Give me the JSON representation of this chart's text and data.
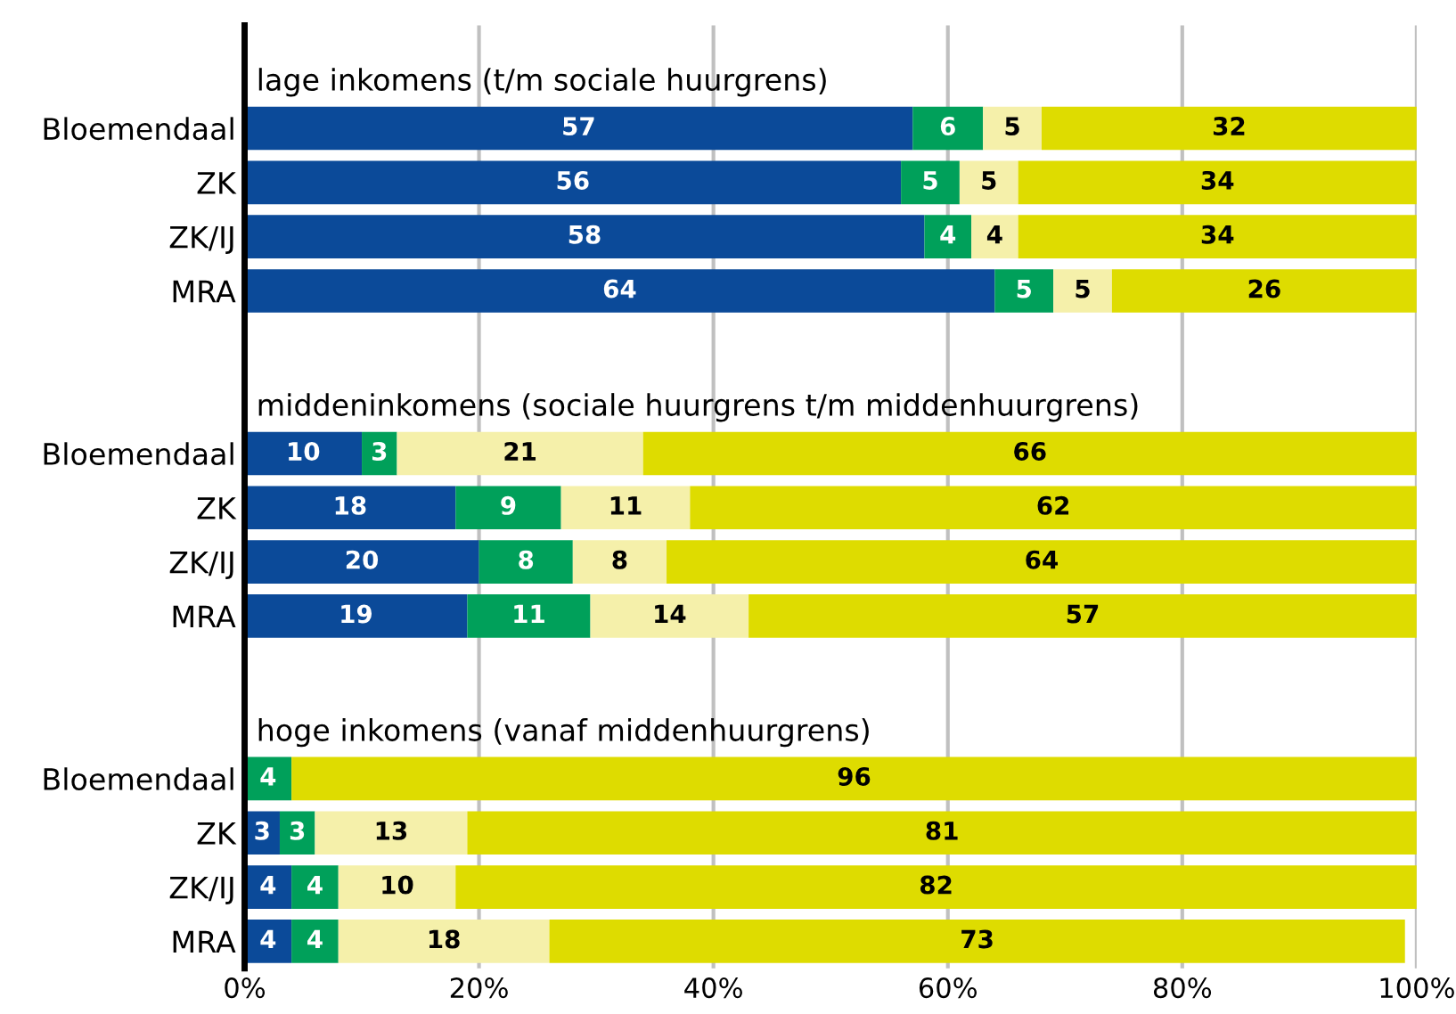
{
  "chart_data": {
    "type": "bar",
    "orientation": "horizontal",
    "stacked": true,
    "categories": [
      null,
      "Bloemendaal",
      "ZK",
      "ZK/IJ",
      "MRA",
      null,
      null,
      "Bloemendaal",
      "ZK",
      "ZK/IJ",
      "MRA",
      null,
      null,
      "Bloemendaal",
      "ZK",
      "ZK/IJ",
      "MRA"
    ],
    "series": [
      {
        "color": "#0b4a99",
        "values": [
          null,
          57,
          56,
          58,
          64,
          null,
          null,
          10,
          18,
          20,
          19,
          null,
          null,
          null,
          3,
          4,
          4
        ],
        "value_labels": [
          null,
          "57",
          "56",
          "58",
          "64",
          null,
          null,
          "10",
          "18",
          "20",
          "19",
          null,
          null,
          null,
          "3",
          "4",
          "4"
        ]
      },
      {
        "color": "#00a05a",
        "values": [
          null,
          6,
          5,
          4,
          5,
          null,
          null,
          3,
          9,
          8,
          10.5,
          null,
          null,
          4,
          3,
          4,
          4
        ],
        "value_labels": [
          null,
          "6",
          "5",
          "4",
          "5",
          null,
          null,
          "3",
          "9",
          "8",
          "11",
          null,
          null,
          "4",
          "3",
          "4",
          "4"
        ]
      },
      {
        "color": "#f5f0aa",
        "values": [
          null,
          5,
          5,
          4,
          5,
          null,
          null,
          21,
          11,
          8,
          13.5,
          null,
          null,
          null,
          13,
          10,
          18
        ],
        "value_labels": [
          null,
          "5",
          "5",
          "4",
          "5",
          null,
          null,
          "21",
          "11",
          "8",
          "14",
          null,
          null,
          null,
          "13",
          "10",
          "18"
        ]
      },
      {
        "color": "#dedc00",
        "values": [
          null,
          32,
          34,
          34,
          26,
          null,
          null,
          66,
          62,
          64,
          57,
          null,
          null,
          96,
          81,
          82,
          73
        ],
        "value_labels": [
          null,
          "32",
          "34",
          "34",
          "26",
          null,
          null,
          "66",
          "62",
          "64",
          "57",
          null,
          null,
          "96",
          "81",
          "82",
          "73"
        ]
      }
    ],
    "annotations": [
      "lage inkomens (t/m sociale huurgrens)",
      "middeninkomens (sociale huurgrens t/m middenhuurgrens)",
      "hoge inkomens (vanaf middenhuurgrens)"
    ],
    "xlim": [
      0,
      100
    ],
    "xticks": [
      {
        "value": 0,
        "label": "0%"
      },
      {
        "value": 20,
        "label": "20%"
      },
      {
        "value": 40,
        "label": "40%"
      },
      {
        "value": 60,
        "label": "60%"
      },
      {
        "value": 80,
        "label": "80%"
      },
      {
        "value": 100,
        "label": "100%"
      }
    ],
    "grid": "x"
  }
}
